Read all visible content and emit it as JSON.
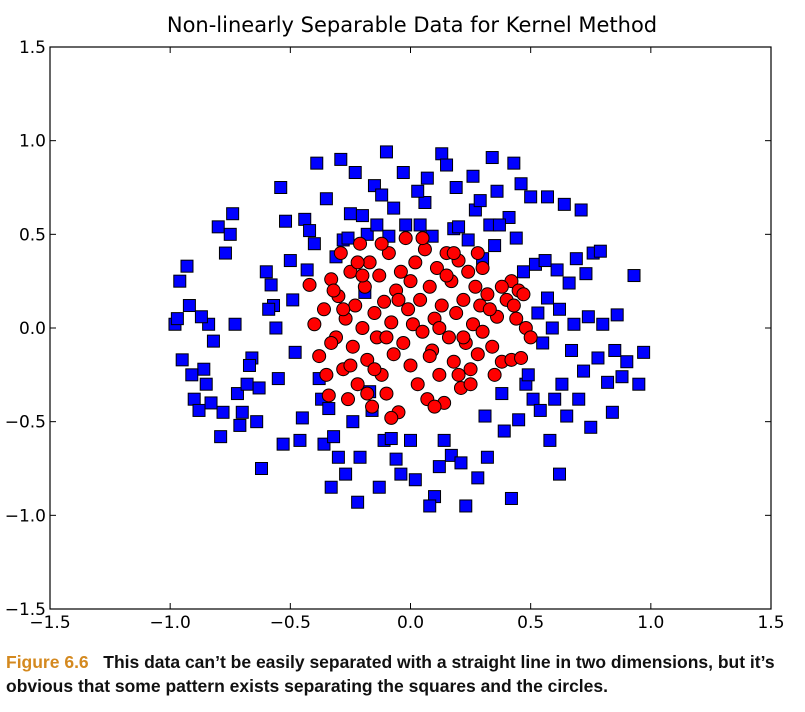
{
  "chart_data": {
    "type": "scatter",
    "title": "Non-linearly Separable Data for Kernel Method",
    "xlabel": "",
    "ylabel": "",
    "xlim": [
      -1.5,
      1.5
    ],
    "ylim": [
      -1.5,
      1.5
    ],
    "x_ticks": [
      "−1.5",
      "−1.0",
      "−0.5",
      "0.0",
      "0.5",
      "1.0",
      "1.5"
    ],
    "y_ticks": [
      "1.5",
      "1.0",
      "0.5",
      "0.0",
      "−0.5",
      "−1.0",
      "−1.5"
    ],
    "grid": false,
    "series": [
      {
        "marker": "square",
        "color": "#0000ff",
        "points": [
          [
            -0.98,
            0.02
          ],
          [
            -0.96,
            0.25
          ],
          [
            -0.93,
            0.33
          ],
          [
            -0.92,
            0.12
          ],
          [
            -0.9,
            -0.38
          ],
          [
            -0.88,
            -0.44
          ],
          [
            -0.86,
            -0.22
          ],
          [
            -0.84,
            0.02
          ],
          [
            -0.82,
            -0.07
          ],
          [
            -0.8,
            0.54
          ],
          [
            -0.78,
            -0.45
          ],
          [
            -0.77,
            0.4
          ],
          [
            -0.74,
            0.61
          ],
          [
            -0.73,
            0.02
          ],
          [
            -0.72,
            -0.35
          ],
          [
            -0.7,
            -0.45
          ],
          [
            -0.68,
            -0.3
          ],
          [
            -0.66,
            -0.16
          ],
          [
            -0.64,
            -0.5
          ],
          [
            -0.62,
            -0.75
          ],
          [
            -0.6,
            0.3
          ],
          [
            -0.58,
            0.23
          ],
          [
            -0.57,
            0.12
          ],
          [
            -0.56,
            0.0
          ],
          [
            -0.55,
            -0.27
          ],
          [
            -0.54,
            0.75
          ],
          [
            -0.52,
            0.57
          ],
          [
            -0.5,
            0.36
          ],
          [
            -0.48,
            -0.13
          ],
          [
            -0.46,
            -0.6
          ],
          [
            -0.45,
            -0.48
          ],
          [
            -0.44,
            0.58
          ],
          [
            -0.42,
            0.52
          ],
          [
            -0.4,
            0.45
          ],
          [
            -0.39,
            0.88
          ],
          [
            -0.37,
            -0.38
          ],
          [
            -0.36,
            -0.62
          ],
          [
            -0.35,
            0.69
          ],
          [
            -0.34,
            -0.43
          ],
          [
            -0.33,
            -0.85
          ],
          [
            -0.31,
            0.38
          ],
          [
            -0.3,
            -0.69
          ],
          [
            -0.29,
            0.9
          ],
          [
            -0.28,
            0.47
          ],
          [
            -0.26,
            0.48
          ],
          [
            -0.25,
            0.61
          ],
          [
            -0.24,
            -0.5
          ],
          [
            -0.22,
            -0.93
          ],
          [
            -0.21,
            -0.69
          ],
          [
            -0.2,
            0.6
          ],
          [
            -0.19,
            0.19
          ],
          [
            -0.18,
            0.5
          ],
          [
            -0.17,
            -0.34
          ],
          [
            -0.16,
            -0.44
          ],
          [
            -0.15,
            0.76
          ],
          [
            -0.14,
            0.55
          ],
          [
            -0.12,
            0.71
          ],
          [
            -0.11,
            -0.6
          ],
          [
            -0.1,
            0.94
          ],
          [
            -0.09,
            0.49
          ],
          [
            -0.08,
            -0.59
          ],
          [
            -0.06,
            -0.7
          ],
          [
            -0.04,
            -0.78
          ],
          [
            -0.03,
            0.83
          ],
          [
            -0.02,
            0.55
          ],
          [
            0.0,
            -0.6
          ],
          [
            0.02,
            -0.81
          ],
          [
            0.04,
            0.55
          ],
          [
            0.06,
            0.67
          ],
          [
            0.07,
            0.8
          ],
          [
            0.09,
            0.49
          ],
          [
            0.1,
            -0.9
          ],
          [
            0.12,
            -0.74
          ],
          [
            0.13,
            0.93
          ],
          [
            0.15,
            0.87
          ],
          [
            0.17,
            -0.68
          ],
          [
            0.18,
            0.53
          ],
          [
            0.2,
            0.54
          ],
          [
            0.21,
            -0.72
          ],
          [
            0.23,
            -0.95
          ],
          [
            0.24,
            0.47
          ],
          [
            0.26,
            0.81
          ],
          [
            0.27,
            0.63
          ],
          [
            0.29,
            0.68
          ],
          [
            0.3,
            0.37
          ],
          [
            0.31,
            -0.47
          ],
          [
            0.32,
            -0.69
          ],
          [
            0.33,
            0.55
          ],
          [
            0.34,
            0.91
          ],
          [
            0.35,
            0.44
          ],
          [
            0.36,
            0.73
          ],
          [
            0.38,
            -0.35
          ],
          [
            0.39,
            -0.55
          ],
          [
            0.41,
            0.59
          ],
          [
            0.42,
            -0.91
          ],
          [
            0.44,
            0.48
          ],
          [
            0.45,
            -0.49
          ],
          [
            0.46,
            0.77
          ],
          [
            0.47,
            0.3
          ],
          [
            0.48,
            -0.3
          ],
          [
            0.5,
            0.7
          ],
          [
            0.51,
            -0.38
          ],
          [
            0.52,
            0.34
          ],
          [
            0.53,
            0.08
          ],
          [
            0.54,
            -0.44
          ],
          [
            0.55,
            -0.08
          ],
          [
            0.56,
            0.36
          ],
          [
            0.57,
            0.7
          ],
          [
            0.58,
            -0.6
          ],
          [
            0.59,
            0.0
          ],
          [
            0.6,
            -0.38
          ],
          [
            0.61,
            0.31
          ],
          [
            0.62,
            0.1
          ],
          [
            0.63,
            -0.3
          ],
          [
            0.64,
            0.66
          ],
          [
            0.65,
            -0.47
          ],
          [
            0.66,
            0.24
          ],
          [
            0.67,
            -0.12
          ],
          [
            0.68,
            0.02
          ],
          [
            0.69,
            0.37
          ],
          [
            0.7,
            -0.38
          ],
          [
            0.72,
            -0.23
          ],
          [
            0.73,
            0.29
          ],
          [
            0.74,
            0.06
          ],
          [
            0.75,
            -0.53
          ],
          [
            0.76,
            0.4
          ],
          [
            0.78,
            -0.16
          ],
          [
            0.8,
            0.02
          ],
          [
            0.82,
            -0.29
          ],
          [
            0.84,
            -0.45
          ],
          [
            0.86,
            0.07
          ],
          [
            0.88,
            -0.26
          ],
          [
            0.9,
            -0.18
          ],
          [
            0.93,
            0.28
          ],
          [
            0.95,
            -0.3
          ],
          [
            0.97,
            -0.13
          ],
          [
            -0.95,
            -0.17
          ],
          [
            -0.91,
            -0.25
          ],
          [
            -0.87,
            0.06
          ],
          [
            -0.83,
            -0.4
          ],
          [
            -0.79,
            -0.58
          ],
          [
            -0.75,
            0.5
          ],
          [
            -0.71,
            -0.52
          ],
          [
            -0.67,
            -0.2
          ],
          [
            -0.63,
            -0.32
          ],
          [
            -0.59,
            0.1
          ],
          [
            -0.53,
            -0.62
          ],
          [
            -0.49,
            0.15
          ],
          [
            -0.43,
            0.31
          ],
          [
            -0.38,
            -0.27
          ],
          [
            -0.32,
            -0.58
          ],
          [
            -0.27,
            -0.78
          ],
          [
            -0.23,
            0.83
          ],
          [
            -0.13,
            -0.85
          ],
          [
            -0.07,
            0.64
          ],
          [
            0.03,
            0.73
          ],
          [
            0.08,
            -0.95
          ],
          [
            0.14,
            -0.6
          ],
          [
            0.19,
            0.75
          ],
          [
            0.28,
            -0.8
          ],
          [
            0.37,
            0.55
          ],
          [
            0.43,
            0.88
          ],
          [
            0.49,
            -0.25
          ],
          [
            0.57,
            0.16
          ],
          [
            0.62,
            -0.78
          ],
          [
            0.71,
            0.63
          ],
          [
            0.79,
            0.41
          ],
          [
            0.85,
            -0.12
          ],
          [
            -0.97,
            0.05
          ],
          [
            -0.85,
            -0.3
          ]
        ]
      },
      {
        "marker": "circle",
        "color": "#ff0000",
        "points": [
          [
            -0.42,
            0.23
          ],
          [
            -0.4,
            0.02
          ],
          [
            -0.38,
            -0.15
          ],
          [
            -0.36,
            0.1
          ],
          [
            -0.34,
            -0.36
          ],
          [
            -0.33,
            0.26
          ],
          [
            -0.31,
            -0.05
          ],
          [
            -0.3,
            0.17
          ],
          [
            -0.29,
            0.4
          ],
          [
            -0.28,
            -0.22
          ],
          [
            -0.27,
            0.05
          ],
          [
            -0.26,
            -0.38
          ],
          [
            -0.25,
            0.3
          ],
          [
            -0.24,
            -0.1
          ],
          [
            -0.23,
            0.12
          ],
          [
            -0.22,
            -0.3
          ],
          [
            -0.21,
            0.45
          ],
          [
            -0.2,
            0.0
          ],
          [
            -0.19,
            0.22
          ],
          [
            -0.18,
            -0.17
          ],
          [
            -0.17,
            0.35
          ],
          [
            -0.16,
            -0.42
          ],
          [
            -0.15,
            0.08
          ],
          [
            -0.14,
            -0.05
          ],
          [
            -0.13,
            0.28
          ],
          [
            -0.12,
            -0.25
          ],
          [
            -0.11,
            0.14
          ],
          [
            -0.1,
            -0.35
          ],
          [
            -0.09,
            0.4
          ],
          [
            -0.08,
            0.03
          ],
          [
            -0.07,
            -0.14
          ],
          [
            -0.06,
            0.2
          ],
          [
            -0.05,
            -0.45
          ],
          [
            -0.04,
            0.3
          ],
          [
            -0.03,
            -0.08
          ],
          [
            -0.02,
            0.48
          ],
          [
            -0.01,
            0.1
          ],
          [
            0.0,
            -0.2
          ],
          [
            0.01,
            0.02
          ],
          [
            0.02,
            0.35
          ],
          [
            0.03,
            -0.3
          ],
          [
            0.04,
            0.15
          ],
          [
            0.05,
            -0.02
          ],
          [
            0.06,
            0.42
          ],
          [
            0.07,
            -0.38
          ],
          [
            0.08,
            0.22
          ],
          [
            0.09,
            -0.12
          ],
          [
            0.1,
            0.05
          ],
          [
            0.11,
            0.32
          ],
          [
            0.12,
            -0.25
          ],
          [
            0.13,
            0.12
          ],
          [
            0.14,
            -0.4
          ],
          [
            0.15,
            0.4
          ],
          [
            0.16,
            -0.05
          ],
          [
            0.17,
            0.25
          ],
          [
            0.18,
            -0.18
          ],
          [
            0.19,
            0.08
          ],
          [
            0.2,
            0.36
          ],
          [
            0.21,
            -0.32
          ],
          [
            0.22,
            0.15
          ],
          [
            0.23,
            -0.08
          ],
          [
            0.24,
            0.3
          ],
          [
            0.25,
            -0.22
          ],
          [
            0.26,
            0.02
          ],
          [
            0.27,
            0.22
          ],
          [
            0.28,
            -0.14
          ],
          [
            0.29,
            0.12
          ],
          [
            0.3,
            -0.02
          ],
          [
            0.32,
            0.18
          ],
          [
            0.34,
            -0.1
          ],
          [
            0.36,
            0.06
          ],
          [
            0.38,
            -0.18
          ],
          [
            0.4,
            0.15
          ],
          [
            0.42,
            -0.17
          ],
          [
            0.44,
            0.05
          ],
          [
            0.46,
            -0.16
          ],
          [
            0.48,
            0.0
          ],
          [
            0.5,
            -0.05
          ],
          [
            -0.35,
            -0.25
          ],
          [
            -0.32,
            0.2
          ],
          [
            -0.22,
            0.35
          ],
          [
            -0.18,
            -0.35
          ],
          [
            -0.12,
            0.45
          ],
          [
            -0.08,
            -0.48
          ],
          [
            0.05,
            0.48
          ],
          [
            0.1,
            -0.42
          ],
          [
            0.18,
            0.4
          ],
          [
            0.25,
            -0.3
          ],
          [
            0.3,
            0.32
          ],
          [
            0.35,
            -0.25
          ],
          [
            0.42,
            0.25
          ],
          [
            0.45,
            0.2
          ],
          [
            0.43,
            0.12
          ],
          [
            0.38,
            0.22
          ],
          [
            -0.28,
            0.1
          ],
          [
            -0.15,
            -0.22
          ],
          [
            -0.05,
            0.15
          ],
          [
            0.08,
            -0.15
          ],
          [
            0.15,
            0.28
          ],
          [
            0.22,
            -0.05
          ],
          [
            0.33,
            0.1
          ],
          [
            -0.2,
            0.28
          ],
          [
            -0.1,
            -0.05
          ],
          [
            0.0,
            0.25
          ],
          [
            0.12,
            0.0
          ],
          [
            0.2,
            -0.25
          ],
          [
            -0.25,
            -0.2
          ],
          [
            -0.33,
            -0.08
          ],
          [
            0.28,
            0.4
          ],
          [
            0.47,
            0.18
          ]
        ]
      }
    ]
  },
  "caption": {
    "label": "Figure 6.6",
    "text": "This data can’t be easily separated with a straight line in two dimensions, but it’s obvious that some pattern exists separating the squares and the circles."
  }
}
